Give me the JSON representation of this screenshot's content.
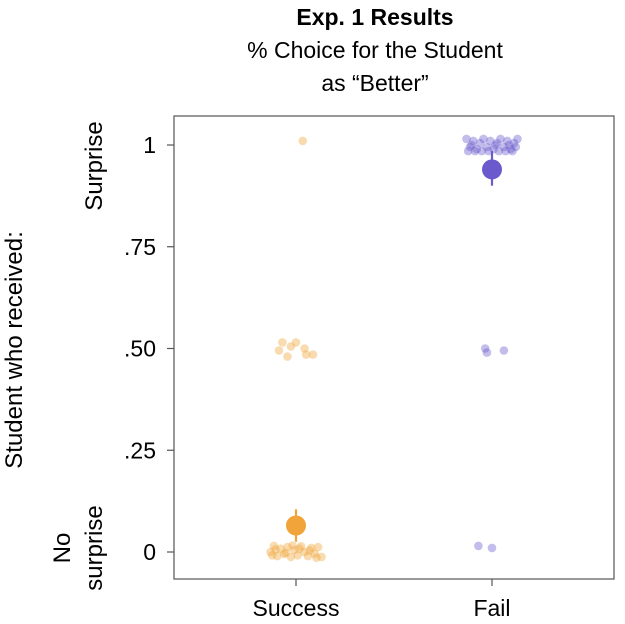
{
  "title": "Exp. 1 Results",
  "subtitle_lines": [
    "% Choice for the Student",
    "as “Better”"
  ],
  "colors": {
    "success": "#F0A43A",
    "fail": "#6A5ACD",
    "axis": "#555555"
  },
  "chart_data": {
    "type": "scatter",
    "title": "Exp. 1 Results",
    "subtitle": "% Choice for the Student as “Better”",
    "xlabel": "",
    "ylabel": "Student who received:",
    "y_group_labels": {
      "top": "Surprise",
      "bottom": [
        "No",
        "surprise"
      ]
    },
    "categories": [
      "Success",
      "Fail"
    ],
    "ylim": [
      -0.07,
      1.07
    ],
    "yticks": [
      0,
      0.25,
      0.5,
      0.75,
      1
    ],
    "ytick_labels": [
      "0",
      ".25",
      ".50",
      ".75",
      "1"
    ],
    "grid": false,
    "series": [
      {
        "name": "Success",
        "category": "Success",
        "color": "#F0A43A",
        "mean": 0.065,
        "ci": [
          0.025,
          0.105
        ],
        "points": [
          {
            "jitter": 0.04,
            "y": 1.01
          },
          {
            "jitter": -0.08,
            "y": 0.515
          },
          {
            "jitter": -0.03,
            "y": 0.505
          },
          {
            "jitter": 0.0,
            "y": 0.515
          },
          {
            "jitter": 0.05,
            "y": 0.5
          },
          {
            "jitter": 0.1,
            "y": 0.485
          },
          {
            "jitter": -0.1,
            "y": 0.495
          },
          {
            "jitter": -0.05,
            "y": 0.48
          },
          {
            "jitter": 0.06,
            "y": 0.485
          },
          {
            "jitter": -0.15,
            "y": 0.0
          },
          {
            "jitter": -0.13,
            "y": 0.015
          },
          {
            "jitter": -0.11,
            "y": -0.01
          },
          {
            "jitter": -0.09,
            "y": 0.008
          },
          {
            "jitter": -0.07,
            "y": -0.005
          },
          {
            "jitter": -0.05,
            "y": 0.012
          },
          {
            "jitter": -0.03,
            "y": -0.012
          },
          {
            "jitter": -0.01,
            "y": 0.005
          },
          {
            "jitter": 0.01,
            "y": -0.008
          },
          {
            "jitter": 0.03,
            "y": 0.014
          },
          {
            "jitter": 0.05,
            "y": 0.0
          },
          {
            "jitter": 0.07,
            "y": -0.01
          },
          {
            "jitter": 0.09,
            "y": 0.01
          },
          {
            "jitter": 0.11,
            "y": -0.004
          },
          {
            "jitter": 0.13,
            "y": 0.012
          },
          {
            "jitter": 0.15,
            "y": -0.012
          },
          {
            "jitter": -0.12,
            "y": 0.006
          },
          {
            "jitter": -0.02,
            "y": 0.016
          },
          {
            "jitter": 0.08,
            "y": 0.004
          },
          {
            "jitter": 0.12,
            "y": -0.014
          },
          {
            "jitter": -0.06,
            "y": -0.002
          },
          {
            "jitter": 0.02,
            "y": 0.008
          },
          {
            "jitter": -0.14,
            "y": -0.008
          }
        ]
      },
      {
        "name": "Fail",
        "category": "Fail",
        "color": "#6A5ACD",
        "mean": 0.94,
        "ci": [
          0.9,
          0.985
        ],
        "points": [
          {
            "jitter": -0.08,
            "y": 0.015
          },
          {
            "jitter": 0.0,
            "y": 0.01
          },
          {
            "jitter": -0.04,
            "y": 0.5
          },
          {
            "jitter": -0.03,
            "y": 0.49
          },
          {
            "jitter": 0.07,
            "y": 0.495
          },
          {
            "jitter": -0.15,
            "y": 1.015
          },
          {
            "jitter": -0.13,
            "y": 0.995
          },
          {
            "jitter": -0.11,
            "y": 1.01
          },
          {
            "jitter": -0.09,
            "y": 0.99
          },
          {
            "jitter": -0.07,
            "y": 1.005
          },
          {
            "jitter": -0.05,
            "y": 1.015
          },
          {
            "jitter": -0.03,
            "y": 0.995
          },
          {
            "jitter": -0.01,
            "y": 1.01
          },
          {
            "jitter": 0.01,
            "y": 0.99
          },
          {
            "jitter": 0.03,
            "y": 1.005
          },
          {
            "jitter": 0.05,
            "y": 1.015
          },
          {
            "jitter": 0.07,
            "y": 0.995
          },
          {
            "jitter": 0.09,
            "y": 1.01
          },
          {
            "jitter": 0.11,
            "y": 0.99
          },
          {
            "jitter": 0.13,
            "y": 1.005
          },
          {
            "jitter": 0.15,
            "y": 1.015
          },
          {
            "jitter": -0.12,
            "y": 1.0
          },
          {
            "jitter": -0.06,
            "y": 0.985
          },
          {
            "jitter": 0.02,
            "y": 1.0
          },
          {
            "jitter": 0.08,
            "y": 0.985
          },
          {
            "jitter": 0.14,
            "y": 0.995
          },
          {
            "jitter": -0.14,
            "y": 0.985
          },
          {
            "jitter": 0.04,
            "y": 0.985
          },
          {
            "jitter": -0.02,
            "y": 0.985
          },
          {
            "jitter": 0.1,
            "y": 1.0
          },
          {
            "jitter": 0.12,
            "y": 0.985
          },
          {
            "jitter": -0.1,
            "y": 0.985
          }
        ]
      }
    ]
  }
}
